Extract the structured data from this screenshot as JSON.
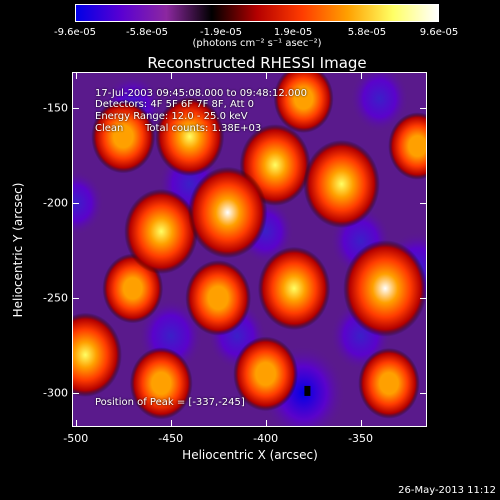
{
  "colorbar": {
    "ticks": [
      "-9.6e-05",
      "-5.8e-05",
      "-1.9e-05",
      "1.9e-05",
      "5.8e-05",
      "9.6e-05"
    ],
    "tick_values": [
      -9.6e-05,
      -5.8e-05,
      -1.9e-05,
      1.9e-05,
      5.8e-05,
      9.6e-05
    ],
    "range": [
      -9.6e-05,
      9.6e-05
    ],
    "unit": "(photons cm⁻² s⁻¹ asec⁻²)",
    "colors": [
      "#0000e6",
      "#5a00d2",
      "#8c28a0",
      "#000000",
      "#b40000",
      "#ff3c00",
      "#ffa000",
      "#ffff64",
      "#ffffff"
    ]
  },
  "chart_data": {
    "type": "heatmap",
    "title": "Reconstructed RHESSI Image",
    "xlabel": "Heliocentric X (arcsec)",
    "ylabel": "Heliocentric Y (arcsec)",
    "xlim": [
      -502,
      -315
    ],
    "ylim": [
      -318,
      -131
    ],
    "x_ticks": [
      -500,
      -450,
      -400,
      -350
    ],
    "y_ticks": [
      -150,
      -200,
      -250,
      -300
    ],
    "x_tick_labels": [
      "-500",
      "-450",
      "-400",
      "-350"
    ],
    "y_tick_labels": [
      "-150",
      "-200",
      "-250",
      "-300"
    ],
    "colormap": "rainbow/heat (blue-purple-black-red-yellow-white)",
    "value_range": [
      -9.6e-05,
      9.6e-05
    ],
    "sources": [
      {
        "x": -337,
        "y": -245,
        "value": 9.6e-05
      },
      {
        "x": -420,
        "y": -205,
        "value": 8.5e-05
      },
      {
        "x": -360,
        "y": -190,
        "value": 7.8e-05
      },
      {
        "x": -395,
        "y": -180,
        "value": 6.5e-05
      },
      {
        "x": -455,
        "y": -215,
        "value": 7.2e-05
      },
      {
        "x": -440,
        "y": -165,
        "value": 6e-05
      },
      {
        "x": -475,
        "y": -165,
        "value": 4.8e-05
      },
      {
        "x": -385,
        "y": -245,
        "value": 6.8e-05
      },
      {
        "x": -425,
        "y": -250,
        "value": 5.2e-05
      },
      {
        "x": -495,
        "y": -280,
        "value": 7e-05
      },
      {
        "x": -455,
        "y": -295,
        "value": 4.5e-05
      },
      {
        "x": -400,
        "y": -290,
        "value": 5e-05
      },
      {
        "x": -335,
        "y": -295,
        "value": 4.2e-05
      },
      {
        "x": -470,
        "y": -245,
        "value": 4e-05
      },
      {
        "x": -380,
        "y": -145,
        "value": 3.8e-05
      },
      {
        "x": -320,
        "y": -170,
        "value": 3.5e-05
      },
      {
        "x": -380,
        "y": -300,
        "value": -9.6e-05
      },
      {
        "x": -440,
        "y": -190,
        "value": -4.5e-05
      },
      {
        "x": -470,
        "y": -150,
        "value": -3.5e-05
      },
      {
        "x": -400,
        "y": -215,
        "value": -3e-05
      },
      {
        "x": -350,
        "y": -220,
        "value": -4e-05
      },
      {
        "x": -450,
        "y": -270,
        "value": -5e-05
      },
      {
        "x": -340,
        "y": -145,
        "value": -3.5e-05
      },
      {
        "x": -320,
        "y": -235,
        "value": -5.5e-05
      },
      {
        "x": -350,
        "y": -270,
        "value": -4e-05
      },
      {
        "x": -500,
        "y": -200,
        "value": -3e-05
      },
      {
        "x": -415,
        "y": -270,
        "value": -3.5e-05
      }
    ],
    "peak": {
      "x": -337,
      "y": -245
    }
  },
  "annotations": {
    "time_range": "17-Jul-2003 09:45:08.000 to 09:48:12.000",
    "detectors": "Detectors: 4F 5F 6F 7F 8F, Att 0",
    "energy_range": "Energy Range: 12.0 - 25.0 keV",
    "clean_label": "Clean",
    "total_counts": "Total counts: 1.38E+03",
    "peak_position": "Position of Peak = [-337,-245]"
  },
  "footer": {
    "timestamp": "26-May-2013 11:12"
  }
}
